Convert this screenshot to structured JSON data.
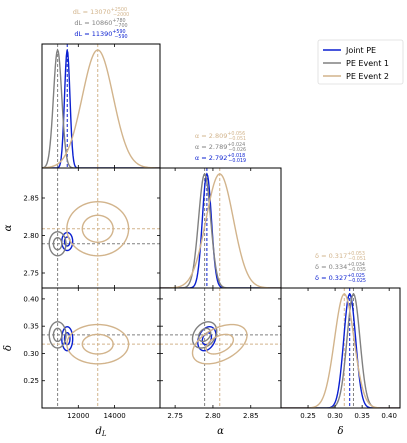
{
  "chart_data": {
    "type": "corner",
    "parameters": [
      {
        "key": "dL",
        "label": "d_L",
        "range": [
          10000,
          16500
        ],
        "ticks": [
          12000,
          14000
        ],
        "tick_labels": [
          "12000",
          "14000"
        ]
      },
      {
        "key": "alpha",
        "label": "α",
        "range": [
          2.73,
          2.89
        ],
        "ticks": [
          2.75,
          2.8,
          2.85
        ],
        "tick_labels": [
          "2.75",
          "2.80",
          "2.85"
        ]
      },
      {
        "key": "delta",
        "label": "δ",
        "range": [
          0.2,
          0.42
        ],
        "ticks": [
          0.25,
          0.3,
          0.35,
          0.4
        ],
        "tick_labels": [
          "0.25",
          "0.30",
          "0.35",
          "0.40"
        ]
      }
    ],
    "series": [
      {
        "name": "Joint PE",
        "color": "#0a1fd0",
        "median": {
          "dL": 11390,
          "alpha": 2.792,
          "delta": 0.327
        },
        "sigma": {
          "dL": 150,
          "alpha": 0.006,
          "delta": 0.011
        },
        "titles": {
          "dL": "d_L = 11390^{+590}_{−590}",
          "alpha": "α = 2.792^{+0.018}_{−0.019}",
          "delta": "δ = 0.327^{+0.025}_{−0.025}"
        },
        "correlation": {
          "dL_alpha": 0.0,
          "dL_delta": 0.0,
          "alpha_delta": 0.3
        },
        "dashed_lines": false
      },
      {
        "name": "PE Event 1",
        "color": "#808080",
        "median": {
          "dL": 10860,
          "alpha": 2.789,
          "delta": 0.334
        },
        "sigma": {
          "dL": 230,
          "alpha": 0.008,
          "delta": 0.012
        },
        "titles": {
          "dL": "d_L = 10860^{+780}_{−700}",
          "alpha": "α = 2.789^{+0.024}_{−0.026}",
          "delta": "δ = 0.334^{+0.034}_{−0.035}"
        },
        "correlation": {
          "dL_alpha": 0.0,
          "dL_delta": 0.0,
          "alpha_delta": 0.3
        },
        "dashed_lines": true
      },
      {
        "name": "PE Event 2",
        "color": "#d2b48c",
        "median": {
          "dL": 13070,
          "alpha": 2.809,
          "delta": 0.317
        },
        "sigma": {
          "dL": 850,
          "alpha": 0.018,
          "delta": 0.018
        },
        "titles": {
          "dL": "d_L = 13070^{+2500}_{−2000}",
          "alpha": "α = 2.809^{+0.056}_{−0.051}",
          "delta": "δ = 0.317^{+0.053}_{−0.051}"
        },
        "correlation": {
          "dL_alpha": 0.0,
          "dL_delta": 0.0,
          "alpha_delta": 0.45
        },
        "dashed_lines": true
      }
    ],
    "contour_levels_sigma": [
      1,
      2
    ],
    "legend_position": "top-right",
    "grid": false
  }
}
